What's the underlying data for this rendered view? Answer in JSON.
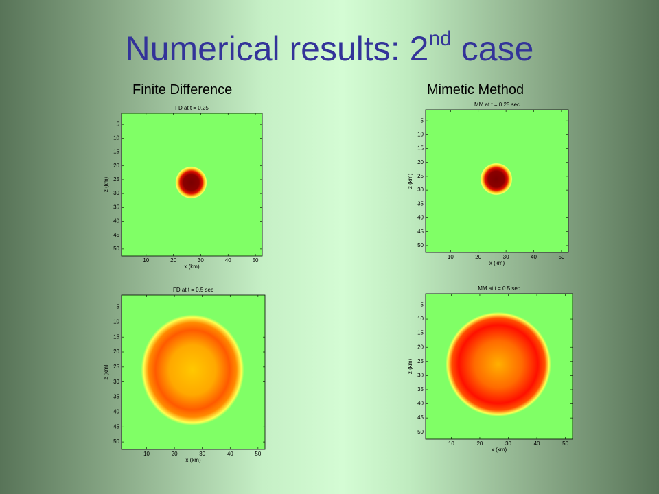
{
  "slide": {
    "title": "Numerical results: 2",
    "title_superscript": "nd",
    "title_end": "case",
    "columns": [
      "Finite Difference",
      "Mimetic Method"
    ],
    "plots": [
      {
        "title": "FD at t = 0.25",
        "xlabel": "x (km)",
        "ylabel": "z (km)",
        "xticks": [
          10,
          20,
          30,
          40,
          50
        ],
        "yticks": [
          5,
          10,
          15,
          20,
          25,
          30,
          35,
          40,
          45,
          50
        ]
      },
      {
        "title": "MM at t = 0.25 sec",
        "xlabel": "x (km)",
        "ylabel": "z (km)",
        "xticks": [
          10,
          20,
          30,
          40,
          50
        ],
        "yticks": [
          5,
          10,
          15,
          20,
          25,
          30,
          35,
          40,
          45,
          50
        ]
      },
      {
        "title": "FD at t = 0.5 sec",
        "xlabel": "x (km)",
        "ylabel": "z (km)",
        "xticks": [
          10,
          20,
          30,
          40,
          50
        ],
        "yticks": [
          5,
          10,
          15,
          20,
          25,
          30,
          35,
          40,
          45,
          50
        ]
      },
      {
        "title": "MM at t = 0.5 sec",
        "xlabel": "x (km)",
        "ylabel": "z (km)",
        "xticks": [
          10,
          20,
          30,
          40,
          50
        ],
        "yticks": [
          5,
          10,
          15,
          20,
          25,
          30,
          35,
          40,
          45,
          50
        ]
      }
    ]
  }
}
